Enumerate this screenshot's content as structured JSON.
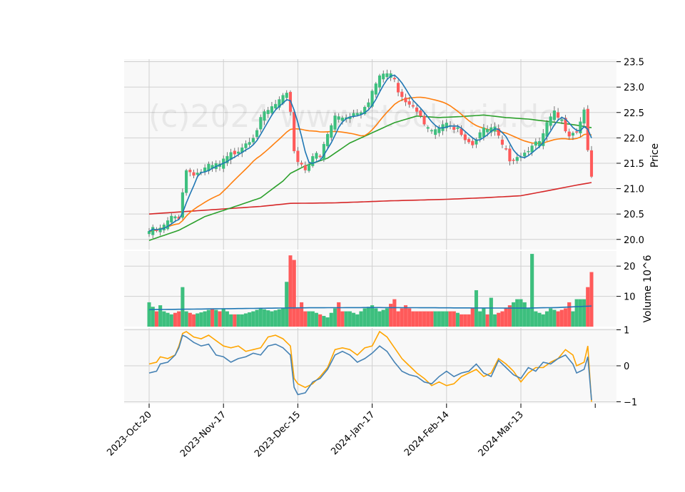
{
  "chart_data": {
    "type": "candlestick",
    "watermark": "(c)2024 www.stockgrid.de",
    "x_tick_labels": [
      "2023-Oct-20",
      "2023-Nov-17",
      "2023-Dec-15",
      "2024-Jan-17",
      "2024-Feb-14",
      "2024-Mar-13"
    ],
    "x_tick_indices": [
      0,
      20,
      40,
      60,
      80,
      100
    ],
    "n_bars": 120,
    "price_panel": {
      "ylabel": "Price",
      "ylim": [
        19.8,
        23.55
      ],
      "yticks": [
        20.0,
        20.5,
        21.0,
        21.5,
        22.0,
        22.5,
        23.0,
        23.5
      ],
      "close_anchors": [
        [
          0,
          20.2
        ],
        [
          3,
          20.22
        ],
        [
          6,
          20.45
        ],
        [
          8,
          20.5
        ],
        [
          9,
          21.0
        ],
        [
          10,
          21.4
        ],
        [
          13,
          21.35
        ],
        [
          16,
          21.45
        ],
        [
          19,
          21.5
        ],
        [
          22,
          21.7
        ],
        [
          25,
          21.9
        ],
        [
          28,
          22.1
        ],
        [
          31,
          22.5
        ],
        [
          35,
          22.75
        ],
        [
          37,
          22.85
        ],
        [
          38,
          22.6
        ],
        [
          39,
          21.8
        ],
        [
          40,
          21.6
        ],
        [
          42,
          21.45
        ],
        [
          44,
          21.7
        ],
        [
          46,
          21.65
        ],
        [
          48,
          22.1
        ],
        [
          50,
          22.45
        ],
        [
          52,
          22.45
        ],
        [
          54,
          22.5
        ],
        [
          57,
          22.6
        ],
        [
          59,
          22.8
        ],
        [
          61,
          23.1
        ],
        [
          63,
          23.3
        ],
        [
          65,
          23.3
        ],
        [
          67,
          23.0
        ],
        [
          69,
          22.8
        ],
        [
          71,
          22.7
        ],
        [
          73,
          22.55
        ],
        [
          75,
          22.2
        ],
        [
          77,
          22.15
        ],
        [
          79,
          22.3
        ],
        [
          81,
          22.25
        ],
        [
          83,
          22.3
        ],
        [
          85,
          22.05
        ],
        [
          87,
          21.95
        ],
        [
          89,
          22.15
        ],
        [
          91,
          22.2
        ],
        [
          93,
          22.2
        ],
        [
          95,
          21.85
        ],
        [
          97,
          21.65
        ],
        [
          99,
          21.7
        ],
        [
          101,
          21.75
        ],
        [
          103,
          21.95
        ],
        [
          105,
          21.9
        ],
        [
          107,
          22.3
        ],
        [
          109,
          22.5
        ],
        [
          111,
          22.35
        ],
        [
          113,
          22.15
        ],
        [
          115,
          22.2
        ],
        [
          117,
          22.6
        ],
        [
          118,
          21.85
        ],
        [
          119,
          21.2
        ]
      ],
      "series": [
        {
          "name": "SMA5",
          "period": 5,
          "color": "#1f77b4"
        },
        {
          "name": "SMA20",
          "period": 20,
          "color": "#ff7f0e"
        },
        {
          "name": "SMA50",
          "period": 50,
          "color": "#2ca02c"
        },
        {
          "name": "SMA200",
          "period": 200,
          "color": "#d62728"
        }
      ],
      "sma50_anchors": [
        [
          0,
          19.98
        ],
        [
          8,
          20.18
        ],
        [
          15,
          20.45
        ],
        [
          22,
          20.62
        ],
        [
          30,
          20.82
        ],
        [
          36,
          21.15
        ],
        [
          38,
          21.3
        ],
        [
          42,
          21.45
        ],
        [
          48,
          21.6
        ],
        [
          54,
          21.9
        ],
        [
          60,
          22.1
        ],
        [
          66,
          22.3
        ],
        [
          72,
          22.43
        ],
        [
          78,
          22.4
        ],
        [
          84,
          22.42
        ],
        [
          90,
          22.45
        ],
        [
          96,
          22.4
        ],
        [
          102,
          22.37
        ],
        [
          110,
          22.3
        ],
        [
          115,
          22.25
        ],
        [
          119,
          22.2
        ]
      ],
      "sma200_anchors": [
        [
          0,
          20.5
        ],
        [
          20,
          20.6
        ],
        [
          30,
          20.65
        ],
        [
          38,
          20.71
        ],
        [
          50,
          20.72
        ],
        [
          65,
          20.76
        ],
        [
          80,
          20.79
        ],
        [
          90,
          20.82
        ],
        [
          100,
          20.86
        ],
        [
          108,
          20.97
        ],
        [
          115,
          21.07
        ],
        [
          119,
          21.12
        ]
      ]
    },
    "volume_panel": {
      "ylabel": "Volume  10^6",
      "ylim": [
        0,
        25
      ],
      "yticks": [
        10,
        20
      ],
      "volume_anchors": [
        [
          0,
          8
        ],
        [
          2,
          5
        ],
        [
          3,
          7
        ],
        [
          4,
          5
        ],
        [
          6,
          4
        ],
        [
          8,
          5
        ],
        [
          9,
          13
        ],
        [
          10,
          5
        ],
        [
          12,
          4
        ],
        [
          15,
          5
        ],
        [
          17,
          6
        ],
        [
          19,
          5
        ],
        [
          20,
          6
        ],
        [
          22,
          4
        ],
        [
          25,
          4
        ],
        [
          28,
          5
        ],
        [
          30,
          6
        ],
        [
          33,
          5
        ],
        [
          36,
          6
        ],
        [
          38,
          23.5
        ],
        [
          39,
          22
        ],
        [
          40,
          6
        ],
        [
          41,
          8
        ],
        [
          42,
          5
        ],
        [
          44,
          5
        ],
        [
          46,
          4
        ],
        [
          48,
          3
        ],
        [
          50,
          6
        ],
        [
          51,
          8
        ],
        [
          52,
          5
        ],
        [
          54,
          5
        ],
        [
          56,
          4
        ],
        [
          58,
          6
        ],
        [
          60,
          7
        ],
        [
          62,
          5
        ],
        [
          64,
          6
        ],
        [
          66,
          9
        ],
        [
          67,
          5
        ],
        [
          69,
          7
        ],
        [
          71,
          5
        ],
        [
          73,
          5
        ],
        [
          75,
          5
        ],
        [
          78,
          5
        ],
        [
          80,
          5
        ],
        [
          82,
          5
        ],
        [
          84,
          4
        ],
        [
          86,
          4
        ],
        [
          87,
          6
        ],
        [
          88,
          12
        ],
        [
          89,
          5
        ],
        [
          90,
          6
        ],
        [
          91,
          4
        ],
        [
          92,
          9.5
        ],
        [
          93,
          4
        ],
        [
          95,
          5
        ],
        [
          96,
          6
        ],
        [
          97,
          7
        ],
        [
          98,
          8
        ],
        [
          99,
          9
        ],
        [
          100,
          9
        ],
        [
          101,
          8
        ],
        [
          102,
          6
        ],
        [
          103,
          24
        ],
        [
          104,
          5
        ],
        [
          106,
          4
        ],
        [
          108,
          6
        ],
        [
          110,
          5
        ],
        [
          112,
          6
        ],
        [
          113,
          8
        ],
        [
          114,
          5
        ],
        [
          115,
          9
        ],
        [
          117,
          9
        ],
        [
          118,
          13
        ],
        [
          119,
          18
        ]
      ],
      "avg_volume_anchors": [
        [
          0,
          5.6
        ],
        [
          20,
          5.9
        ],
        [
          40,
          6.2
        ],
        [
          60,
          6.3
        ],
        [
          80,
          6.2
        ],
        [
          100,
          6.1
        ],
        [
          110,
          6.3
        ],
        [
          119,
          6.8
        ]
      ]
    },
    "oscillator_panel": {
      "ylim": [
        -1.05,
        1.05
      ],
      "yticks": [
        -1,
        0,
        1
      ],
      "series": [
        {
          "name": "fast",
          "color": "#4682b4"
        },
        {
          "name": "slow",
          "color": "#ffa500"
        }
      ],
      "fast_anchors": [
        [
          0,
          -0.2
        ],
        [
          2,
          -0.15
        ],
        [
          3,
          0.05
        ],
        [
          5,
          0.1
        ],
        [
          7,
          0.3
        ],
        [
          8,
          0.5
        ],
        [
          9,
          0.85
        ],
        [
          10,
          0.8
        ],
        [
          12,
          0.65
        ],
        [
          14,
          0.55
        ],
        [
          16,
          0.6
        ],
        [
          18,
          0.3
        ],
        [
          20,
          0.25
        ],
        [
          22,
          0.1
        ],
        [
          24,
          0.2
        ],
        [
          26,
          0.25
        ],
        [
          28,
          0.35
        ],
        [
          30,
          0.3
        ],
        [
          32,
          0.55
        ],
        [
          34,
          0.6
        ],
        [
          36,
          0.5
        ],
        [
          38,
          0.3
        ],
        [
          39,
          -0.6
        ],
        [
          40,
          -0.8
        ],
        [
          42,
          -0.75
        ],
        [
          44,
          -0.45
        ],
        [
          46,
          -0.35
        ],
        [
          48,
          -0.1
        ],
        [
          50,
          0.3
        ],
        [
          52,
          0.4
        ],
        [
          54,
          0.3
        ],
        [
          56,
          0.1
        ],
        [
          58,
          0.2
        ],
        [
          60,
          0.35
        ],
        [
          62,
          0.55
        ],
        [
          64,
          0.4
        ],
        [
          66,
          0.1
        ],
        [
          68,
          -0.15
        ],
        [
          70,
          -0.25
        ],
        [
          72,
          -0.3
        ],
        [
          74,
          -0.45
        ],
        [
          76,
          -0.5
        ],
        [
          78,
          -0.3
        ],
        [
          80,
          -0.15
        ],
        [
          82,
          -0.3
        ],
        [
          84,
          -0.2
        ],
        [
          86,
          -0.15
        ],
        [
          88,
          0.05
        ],
        [
          90,
          -0.2
        ],
        [
          92,
          -0.3
        ],
        [
          94,
          0.15
        ],
        [
          96,
          -0.05
        ],
        [
          98,
          -0.25
        ],
        [
          100,
          -0.35
        ],
        [
          102,
          -0.05
        ],
        [
          104,
          -0.15
        ],
        [
          106,
          0.1
        ],
        [
          108,
          0.05
        ],
        [
          110,
          0.2
        ],
        [
          112,
          0.3
        ],
        [
          114,
          0.05
        ],
        [
          115,
          -0.2
        ],
        [
          117,
          -0.1
        ],
        [
          118,
          0.25
        ],
        [
          119,
          -0.95
        ]
      ],
      "slow_anchors": [
        [
          0,
          0.05
        ],
        [
          2,
          0.1
        ],
        [
          3,
          0.25
        ],
        [
          5,
          0.2
        ],
        [
          7,
          0.3
        ],
        [
          8,
          0.55
        ],
        [
          9,
          0.9
        ],
        [
          10,
          0.95
        ],
        [
          12,
          0.8
        ],
        [
          14,
          0.75
        ],
        [
          16,
          0.85
        ],
        [
          18,
          0.7
        ],
        [
          20,
          0.55
        ],
        [
          22,
          0.5
        ],
        [
          24,
          0.55
        ],
        [
          26,
          0.4
        ],
        [
          28,
          0.45
        ],
        [
          30,
          0.5
        ],
        [
          32,
          0.8
        ],
        [
          34,
          0.85
        ],
        [
          36,
          0.75
        ],
        [
          38,
          0.55
        ],
        [
          39,
          -0.35
        ],
        [
          40,
          -0.5
        ],
        [
          42,
          -0.6
        ],
        [
          44,
          -0.5
        ],
        [
          46,
          -0.3
        ],
        [
          48,
          -0.05
        ],
        [
          50,
          0.45
        ],
        [
          52,
          0.5
        ],
        [
          54,
          0.45
        ],
        [
          56,
          0.3
        ],
        [
          58,
          0.5
        ],
        [
          60,
          0.55
        ],
        [
          62,
          0.95
        ],
        [
          64,
          0.8
        ],
        [
          66,
          0.5
        ],
        [
          68,
          0.2
        ],
        [
          70,
          0.0
        ],
        [
          72,
          -0.2
        ],
        [
          74,
          -0.35
        ],
        [
          76,
          -0.55
        ],
        [
          78,
          -0.45
        ],
        [
          80,
          -0.55
        ],
        [
          82,
          -0.5
        ],
        [
          84,
          -0.3
        ],
        [
          86,
          -0.2
        ],
        [
          88,
          -0.1
        ],
        [
          90,
          -0.3
        ],
        [
          92,
          -0.2
        ],
        [
          94,
          0.2
        ],
        [
          96,
          0.05
        ],
        [
          98,
          -0.15
        ],
        [
          100,
          -0.45
        ],
        [
          102,
          -0.2
        ],
        [
          104,
          -0.05
        ],
        [
          106,
          -0.05
        ],
        [
          108,
          0.1
        ],
        [
          110,
          0.2
        ],
        [
          112,
          0.45
        ],
        [
          114,
          0.3
        ],
        [
          115,
          0.0
        ],
        [
          117,
          0.1
        ],
        [
          118,
          0.55
        ],
        [
          119,
          -1.0
        ]
      ]
    },
    "colors": {
      "up": "#3dbf7e",
      "down": "#ff5a5a",
      "volume_avg": "#1f77b4",
      "grid": "#d0d0d0",
      "panel_bg": "#f8f8f8"
    }
  }
}
